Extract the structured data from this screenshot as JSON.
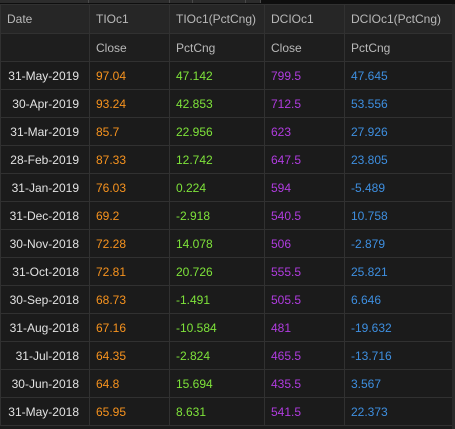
{
  "columns": [
    {
      "header": "Date",
      "subheader": ""
    },
    {
      "header": "TIOc1",
      "subheader": "Close"
    },
    {
      "header": "TIOc1(PctCng)",
      "subheader": "PctCng"
    },
    {
      "header": "DCIOc1",
      "subheader": "Close"
    },
    {
      "header": "DCIOc1(PctCng)",
      "subheader": "PctCng"
    }
  ],
  "colors": {
    "tio_close": "#f7931e",
    "tio_pct": "#7ee33a",
    "dcio_close": "#b13ce0",
    "dcio_pct": "#3e8fe0"
  },
  "rows": [
    {
      "date": "31-May-2019",
      "tio_close": "97.04",
      "tio_pct": "47.142",
      "dcio_close": "799.5",
      "dcio_pct": "47.645"
    },
    {
      "date": "30-Apr-2019",
      "tio_close": "93.24",
      "tio_pct": "42.853",
      "dcio_close": "712.5",
      "dcio_pct": "53.556"
    },
    {
      "date": "31-Mar-2019",
      "tio_close": "85.7",
      "tio_pct": "22.956",
      "dcio_close": "623",
      "dcio_pct": "27.926"
    },
    {
      "date": "28-Feb-2019",
      "tio_close": "87.33",
      "tio_pct": "12.742",
      "dcio_close": "647.5",
      "dcio_pct": "23.805"
    },
    {
      "date": "31-Jan-2019",
      "tio_close": "76.03",
      "tio_pct": "0.224",
      "dcio_close": "594",
      "dcio_pct": "-5.489"
    },
    {
      "date": "31-Dec-2018",
      "tio_close": "69.2",
      "tio_pct": "-2.918",
      "dcio_close": "540.5",
      "dcio_pct": "10.758"
    },
    {
      "date": "30-Nov-2018",
      "tio_close": "72.28",
      "tio_pct": "14.078",
      "dcio_close": "506",
      "dcio_pct": "-2.879"
    },
    {
      "date": "31-Oct-2018",
      "tio_close": "72.81",
      "tio_pct": "20.726",
      "dcio_close": "555.5",
      "dcio_pct": "25.821"
    },
    {
      "date": "30-Sep-2018",
      "tio_close": "68.73",
      "tio_pct": "-1.491",
      "dcio_close": "505.5",
      "dcio_pct": "6.646"
    },
    {
      "date": "31-Aug-2018",
      "tio_close": "67.16",
      "tio_pct": "-10.584",
      "dcio_close": "481",
      "dcio_pct": "-19.632"
    },
    {
      "date": "31-Jul-2018",
      "tio_close": "64.35",
      "tio_pct": "-2.824",
      "dcio_close": "465.5",
      "dcio_pct": "-13.716"
    },
    {
      "date": "30-Jun-2018",
      "tio_close": "64.8",
      "tio_pct": "15.694",
      "dcio_close": "435.5",
      "dcio_pct": "3.567"
    },
    {
      "date": "31-May-2018",
      "tio_close": "65.95",
      "tio_pct": "8.631",
      "dcio_close": "541.5",
      "dcio_pct": "22.373"
    }
  ]
}
